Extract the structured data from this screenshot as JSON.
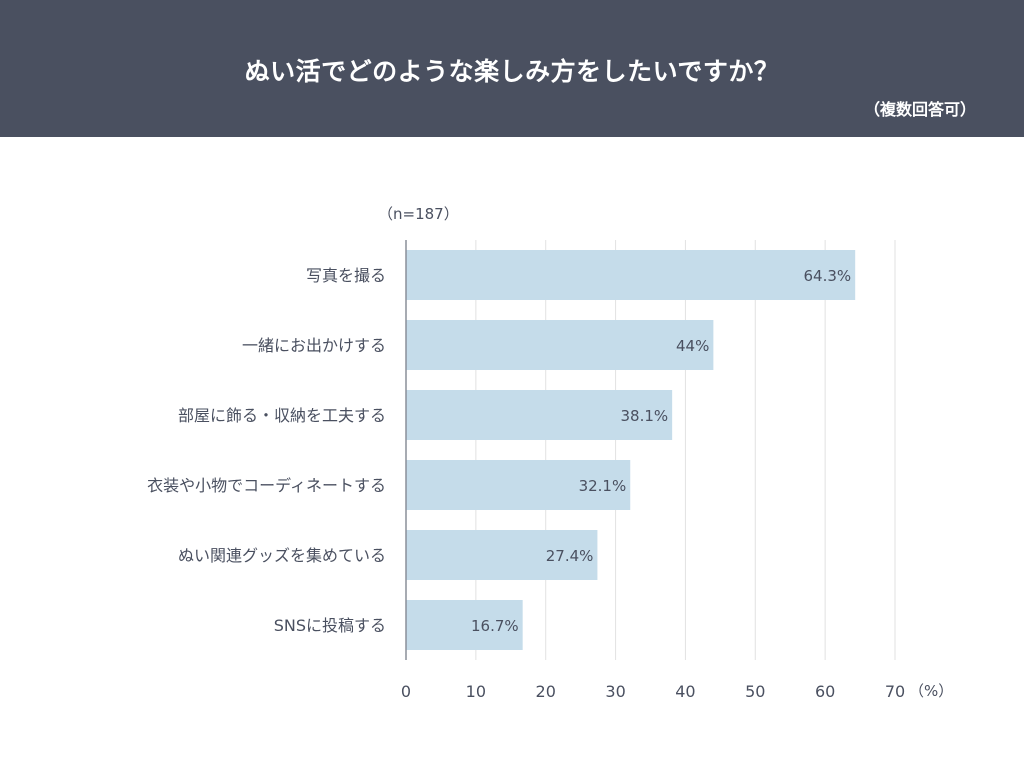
{
  "header": {
    "title": "ぬい活でどのような楽しみ方をしたいですか？",
    "subtitle": "（複数回答可）"
  },
  "chart_data": {
    "type": "bar",
    "orientation": "horizontal",
    "note": "（n=187）",
    "categories": [
      "写真を撮る",
      "一緒にお出かけする",
      "部屋に飾る・収納を工夫する",
      "衣装や小物でコーディネートする",
      "ぬい関連グッズを集めている",
      "SNSに投稿する"
    ],
    "values": [
      64.3,
      44,
      38.1,
      32.1,
      27.4,
      16.7
    ],
    "data_labels": [
      "64.3%",
      "44%",
      "38.1%",
      "32.1%",
      "27.4%",
      "16.7%"
    ],
    "xlim": [
      0,
      70
    ],
    "xticks": [
      "0",
      "10",
      "20",
      "30",
      "40",
      "50",
      "60",
      "70"
    ],
    "xunit": "（%）",
    "grid": true,
    "colors": {
      "bar": "#c5dcea",
      "grid": "#e2e2e2",
      "axis": "#8a8f99",
      "text": "#4a5060",
      "header": "#4a5060"
    }
  }
}
